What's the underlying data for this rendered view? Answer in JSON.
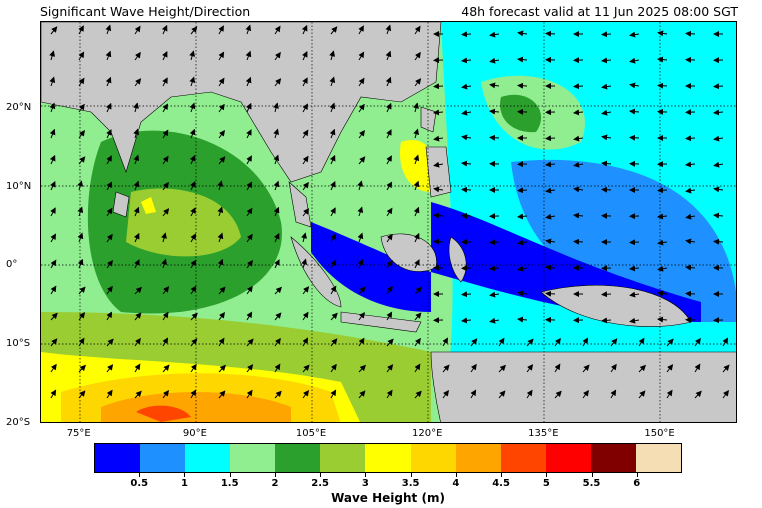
{
  "header": {
    "title": "Significant Wave Height/Direction",
    "valid_time": "48h forecast valid at 11 Jun 2025 08:00 SGT"
  },
  "map": {
    "lon_min": 70,
    "lon_max": 160,
    "lat_min": -20,
    "lat_max": 31,
    "lat_labels": [
      {
        "lat": 20,
        "text": "20°N"
      },
      {
        "lat": 10,
        "text": "10°N"
      },
      {
        "lat": 0,
        "text": "0°"
      },
      {
        "lat": -10,
        "text": "10°S"
      },
      {
        "lat": -20,
        "text": "20°S"
      }
    ],
    "lon_labels": [
      {
        "lon": 75,
        "text": "75°E"
      },
      {
        "lon": 90,
        "text": "90°E"
      },
      {
        "lon": 105,
        "text": "105°E"
      },
      {
        "lon": 120,
        "text": "120°E"
      },
      {
        "lon": 135,
        "text": "135°E"
      },
      {
        "lon": 150,
        "text": "150°E"
      }
    ],
    "land_color": "#c8c8c8",
    "gridlines": "dotted"
  },
  "colorbar": {
    "title": "Wave Height (m)",
    "colors": [
      "#0000ff",
      "#1e90ff",
      "#00ffff",
      "#90ee90",
      "#2ca02c",
      "#9acd32",
      "#ffff00",
      "#ffd700",
      "#ffa500",
      "#ff4500",
      "#ff0000",
      "#800000",
      "#f5deb3"
    ],
    "ticks": [
      "0.5",
      "1",
      "1.5",
      "2",
      "2.5",
      "3",
      "3.5",
      "4",
      "4.5",
      "5",
      "5.5",
      "6"
    ]
  }
}
